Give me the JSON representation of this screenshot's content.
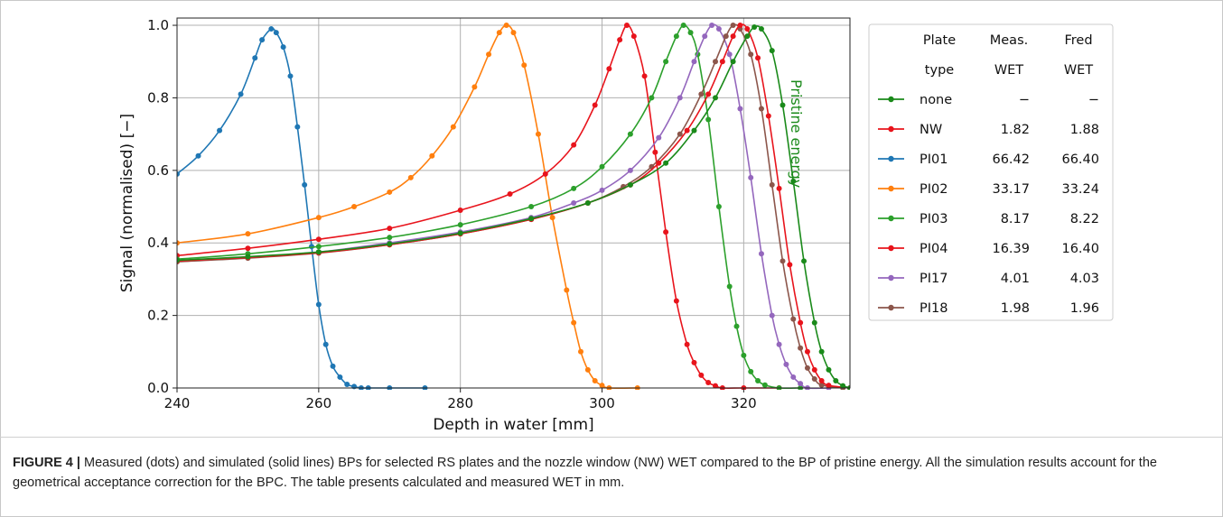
{
  "caption": {
    "label": "FIGURE 4 |",
    "text": " Measured (dots) and simulated (solid lines) BPs for selected RS plates and the nozzle window (NW) WET compared to the BP of pristine energy. All the simulation results account for the geometrical acceptance correction for the BPC. The table presents calculated and measured WET in mm."
  },
  "chart_data": {
    "type": "line",
    "xlabel": "Depth in water [mm]",
    "ylabel": "Signal (normalised) [−]",
    "xlim": [
      240,
      335
    ],
    "ylim": [
      0,
      1.02
    ],
    "xticks": [
      "240",
      "260",
      "280",
      "300",
      "320"
    ],
    "yticks": [
      "0.0",
      "0.2",
      "0.4",
      "0.6",
      "0.8",
      "1.0"
    ],
    "grid": true,
    "annotation": "Pristine energy",
    "legend": {
      "placement": "right",
      "headers": [
        [
          "",
          "Plate",
          "Meas.",
          "Fred"
        ],
        [
          "",
          "type",
          "WET",
          "WET"
        ]
      ],
      "rows": [
        {
          "name": "none",
          "color": "#1a8a1a",
          "meas": "−",
          "fred": "−"
        },
        {
          "name": "NW",
          "color": "#e8141c",
          "meas": "1.82",
          "fred": "1.88"
        },
        {
          "name": "PI01",
          "color": "#1f77b4",
          "meas": "66.42",
          "fred": "66.40"
        },
        {
          "name": "PI02",
          "color": "#ff7f0e",
          "meas": "33.17",
          "fred": "33.24"
        },
        {
          "name": "PI03",
          "color": "#2ca02c",
          "meas": "8.17",
          "fred": "8.22"
        },
        {
          "name": "PI04",
          "color": "#e8141c",
          "meas": "16.39",
          "fred": "16.40"
        },
        {
          "name": "PI17",
          "color": "#9467bd",
          "meas": "4.01",
          "fred": "4.03"
        },
        {
          "name": "PI18",
          "color": "#8c564b",
          "meas": "1.98",
          "fred": "1.96"
        }
      ]
    },
    "series": [
      {
        "name": "PI01",
        "color": "#1f77b4",
        "x": [
          240,
          243,
          246,
          249,
          251,
          252,
          253.3,
          254,
          255,
          256,
          257,
          258,
          259,
          260,
          261,
          262,
          263,
          264,
          265,
          266,
          267,
          270,
          275
        ],
        "y": [
          0.59,
          0.64,
          0.71,
          0.81,
          0.91,
          0.96,
          0.99,
          0.98,
          0.94,
          0.86,
          0.72,
          0.56,
          0.39,
          0.23,
          0.12,
          0.06,
          0.03,
          0.01,
          0.004,
          0.0,
          0.0,
          0.0,
          0.0
        ]
      },
      {
        "name": "PI02",
        "color": "#ff7f0e",
        "x": [
          240,
          250,
          260,
          265,
          270,
          273,
          276,
          279,
          282,
          284,
          285.5,
          286.5,
          287.5,
          289,
          291,
          293,
          295,
          296,
          297,
          298,
          299,
          300,
          301,
          305
        ],
        "y": [
          0.4,
          0.425,
          0.47,
          0.5,
          0.54,
          0.58,
          0.64,
          0.72,
          0.83,
          0.92,
          0.98,
          1.0,
          0.98,
          0.89,
          0.7,
          0.47,
          0.27,
          0.18,
          0.1,
          0.05,
          0.02,
          0.007,
          0.0,
          0.0
        ]
      },
      {
        "name": "PI04",
        "color": "#e8141c",
        "x": [
          240,
          250,
          260,
          270,
          280,
          287,
          292,
          296,
          299,
          301,
          302.5,
          303.5,
          304.5,
          306,
          307.5,
          309,
          310.5,
          312,
          313,
          314,
          315,
          316,
          317,
          320,
          325
        ],
        "y": [
          0.365,
          0.385,
          0.41,
          0.44,
          0.49,
          0.535,
          0.59,
          0.67,
          0.78,
          0.88,
          0.96,
          1.0,
          0.97,
          0.86,
          0.65,
          0.43,
          0.24,
          0.12,
          0.07,
          0.035,
          0.015,
          0.006,
          0.0,
          0.0,
          0.0
        ]
      },
      {
        "name": "PI03",
        "color": "#2ca02c",
        "x": [
          240,
          250,
          260,
          270,
          280,
          290,
          296,
          300,
          304,
          307,
          309,
          310.5,
          311.5,
          312.5,
          313.5,
          315,
          316.5,
          318,
          319,
          320,
          321,
          322,
          323,
          325,
          328
        ],
        "y": [
          0.355,
          0.37,
          0.39,
          0.415,
          0.45,
          0.5,
          0.55,
          0.61,
          0.7,
          0.8,
          0.9,
          0.97,
          1.0,
          0.98,
          0.92,
          0.74,
          0.5,
          0.28,
          0.17,
          0.09,
          0.045,
          0.02,
          0.008,
          0.0,
          0.0
        ]
      },
      {
        "name": "PI17",
        "color": "#9467bd",
        "x": [
          240,
          250,
          260,
          270,
          280,
          290,
          296,
          300,
          304,
          308,
          311,
          313,
          314.5,
          315.5,
          316.5,
          318,
          319.5,
          321,
          322.5,
          324,
          325,
          326,
          327,
          328,
          329,
          332
        ],
        "y": [
          0.35,
          0.36,
          0.375,
          0.4,
          0.43,
          0.47,
          0.51,
          0.545,
          0.6,
          0.69,
          0.8,
          0.9,
          0.97,
          1.0,
          0.99,
          0.92,
          0.77,
          0.58,
          0.37,
          0.2,
          0.12,
          0.065,
          0.03,
          0.012,
          0.0,
          0.0
        ]
      },
      {
        "name": "PI18",
        "color": "#8c564b",
        "x": [
          240,
          250,
          260,
          270,
          280,
          290,
          298,
          303,
          307,
          311,
          314,
          316,
          317.5,
          318.5,
          319.5,
          321,
          322.5,
          324,
          325.5,
          327,
          328,
          329,
          330,
          331,
          334
        ],
        "y": [
          0.348,
          0.358,
          0.372,
          0.395,
          0.425,
          0.465,
          0.51,
          0.555,
          0.61,
          0.7,
          0.81,
          0.9,
          0.97,
          1.0,
          0.99,
          0.92,
          0.77,
          0.56,
          0.35,
          0.19,
          0.11,
          0.055,
          0.025,
          0.008,
          0.0
        ]
      },
      {
        "name": "NW",
        "color": "#e8141c",
        "x": [
          240,
          250,
          260,
          270,
          280,
          290,
          298,
          304,
          308,
          312,
          315,
          317,
          318.5,
          319.5,
          320.5,
          322,
          323.5,
          325,
          326.5,
          328,
          329,
          330,
          331,
          332,
          335
        ],
        "y": [
          0.35,
          0.36,
          0.373,
          0.395,
          0.425,
          0.465,
          0.51,
          0.56,
          0.62,
          0.71,
          0.81,
          0.9,
          0.97,
          1.0,
          0.99,
          0.91,
          0.75,
          0.55,
          0.34,
          0.18,
          0.1,
          0.05,
          0.02,
          0.007,
          0.0
        ]
      },
      {
        "name": "none",
        "color": "#1a8a1a",
        "x": [
          240,
          250,
          260,
          270,
          280,
          290,
          298,
          304,
          309,
          313,
          316,
          318.5,
          320.5,
          321.5,
          322.5,
          324,
          325.5,
          327,
          328.5,
          330,
          331,
          332,
          333,
          334,
          335
        ],
        "y": [
          0.352,
          0.362,
          0.375,
          0.397,
          0.427,
          0.467,
          0.51,
          0.56,
          0.62,
          0.71,
          0.8,
          0.9,
          0.97,
          0.995,
          0.99,
          0.93,
          0.78,
          0.57,
          0.35,
          0.18,
          0.1,
          0.05,
          0.02,
          0.006,
          0.0
        ]
      }
    ]
  }
}
